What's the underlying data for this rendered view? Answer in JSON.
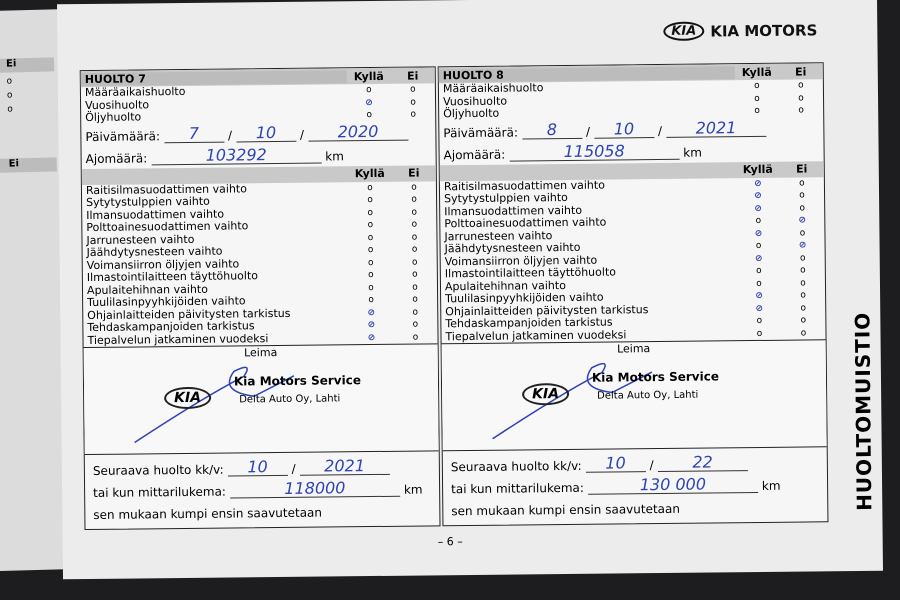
{
  "brand": {
    "logo": "KIA",
    "name": "KIA MOTORS"
  },
  "side_title": "HUOLTOMUISTIO",
  "page_number": "– 6 –",
  "left_page_fragment": {
    "header": "Ei"
  },
  "columns": {
    "yes": "Kyllä",
    "no": "Ei"
  },
  "services": [
    {
      "title": "HUOLTO 7",
      "types": [
        {
          "label": "Määräaikaishuolto",
          "mark": "none"
        },
        {
          "label": "Vuosihuolto",
          "mark": "yes"
        },
        {
          "label": "Öljyhuolto",
          "mark": "none"
        }
      ],
      "date_label": "Päivämäärä:",
      "date": {
        "day": "7",
        "month": "10",
        "year": "2020"
      },
      "mileage_label": "Ajomäärä:",
      "mileage": "103292",
      "km": "km",
      "checks": [
        {
          "label": "Raitisilmasuodattimen vaihto",
          "mark": "none"
        },
        {
          "label": "Sytytystulppien vaihto",
          "mark": "none"
        },
        {
          "label": "Ilmansuodattimen vaihto",
          "mark": "none"
        },
        {
          "label": "Polttoainesuodattimen vaihto",
          "mark": "none"
        },
        {
          "label": "Jarrunesteen vaihto",
          "mark": "none"
        },
        {
          "label": "Jäähdytysnesteen vaihto",
          "mark": "none"
        },
        {
          "label": "Voimansiirron öljyjen vaihto",
          "mark": "none"
        },
        {
          "label": "Ilmastointilaitteen täyttöhuolto",
          "mark": "none"
        },
        {
          "label": "Apulaitehihnan vaihto",
          "mark": "none"
        },
        {
          "label": "Tuulilasinpyyhkijöiden vaihto",
          "mark": "none"
        },
        {
          "label": "Ohjainlaitteiden päivitysten tarkistus",
          "mark": "yes"
        },
        {
          "label": "Tehdaskampanjoiden tarkistus",
          "mark": "yes"
        },
        {
          "label": "Tiepalvelun jatkaminen vuodeksi",
          "mark": "yes"
        }
      ],
      "stamp": {
        "label": "Leima",
        "logo": "KIA",
        "service": "Kia Motors Service",
        "dealer": "Delta Auto Oy, Lahti"
      },
      "next_label": "Seuraava huolto kk/v:",
      "next": {
        "month": "10",
        "year": "2021"
      },
      "odometer_label": "tai kun mittarilukema:",
      "odometer": "118000",
      "footer": "sen mukaan kumpi ensin saavutetaan"
    },
    {
      "title": "HUOLTO 8",
      "types": [
        {
          "label": "Määräaikaishuolto",
          "mark": "none"
        },
        {
          "label": "Vuosihuolto",
          "mark": "none"
        },
        {
          "label": "Öljyhuolto",
          "mark": "none"
        }
      ],
      "date_label": "Päivämäärä:",
      "date": {
        "day": "8",
        "month": "10",
        "year": "2021"
      },
      "mileage_label": "Ajomäärä:",
      "mileage": "115058",
      "km": "km",
      "checks": [
        {
          "label": "Raitisilmasuodattimen vaihto",
          "mark": "yes"
        },
        {
          "label": "Sytytystulppien vaihto",
          "mark": "yes"
        },
        {
          "label": "Ilmansuodattimen vaihto",
          "mark": "yes"
        },
        {
          "label": "Polttoainesuodattimen vaihto",
          "mark": "no"
        },
        {
          "label": "Jarrunesteen vaihto",
          "mark": "yes"
        },
        {
          "label": "Jäähdytysnesteen vaihto",
          "mark": "no"
        },
        {
          "label": "Voimansiirron öljyjen vaihto",
          "mark": "yes"
        },
        {
          "label": "Ilmastointilaitteen täyttöhuolto",
          "mark": "none"
        },
        {
          "label": "Apulaitehihnan vaihto",
          "mark": "none"
        },
        {
          "label": "Tuulilasinpyyhkijöiden vaihto",
          "mark": "yes"
        },
        {
          "label": "Ohjainlaitteiden päivitysten tarkistus",
          "mark": "yes"
        },
        {
          "label": "Tehdaskampanjoiden tarkistus",
          "mark": "none"
        },
        {
          "label": "Tiepalvelun jatkaminen vuodeksi",
          "mark": "none"
        }
      ],
      "stamp": {
        "label": "Leima",
        "logo": "KIA",
        "service": "Kia Motors Service",
        "dealer": "Delta Auto Oy, Lahti"
      },
      "next_label": "Seuraava huolto kk/v:",
      "next": {
        "month": "10",
        "year": "22"
      },
      "odometer_label": "tai kun mittarilukema:",
      "odometer": "130 000",
      "footer": "sen mukaan kumpi ensin saavutetaan"
    }
  ]
}
